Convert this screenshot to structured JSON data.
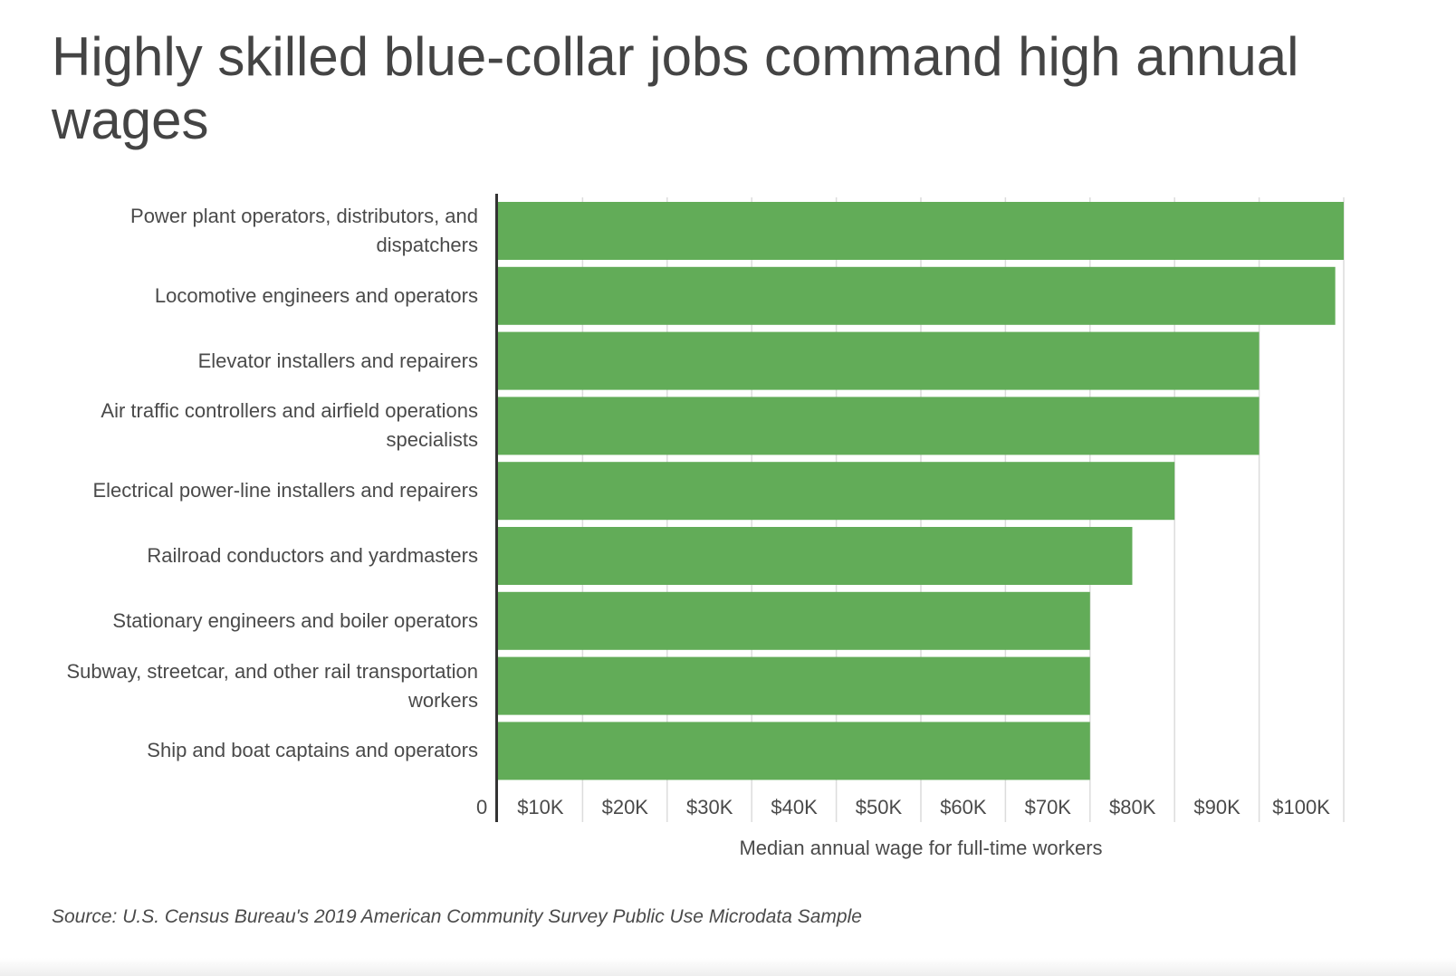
{
  "chart_data": {
    "type": "bar",
    "orientation": "horizontal",
    "title": "Highly skilled blue-collar jobs command high annual wages",
    "xlabel": "Median annual wage for full-time workers",
    "ylabel": "",
    "categories": [
      "Power plant operators, distributors, and dispatchers",
      "Locomotive engineers and operators",
      "Elevator installers and repairers",
      "Air traffic controllers and airfield operations specialists",
      "Electrical power-line installers and repairers",
      "Railroad conductors and yardmasters",
      "Stationary engineers and boiler operators",
      "Subway, streetcar, and other rail transportation workers",
      "Ship and boat captains and operators"
    ],
    "values": [
      100000,
      99000,
      90000,
      90000,
      80000,
      75000,
      70000,
      70000,
      70000
    ],
    "xlim": [
      0,
      100000
    ],
    "xticks": [
      0,
      10000,
      20000,
      30000,
      40000,
      50000,
      60000,
      70000,
      80000,
      90000,
      100000
    ],
    "xtick_labels": [
      "0",
      "$10K",
      "$20K",
      "$30K",
      "$40K",
      "$50K",
      "$60K",
      "$70K",
      "$80K",
      "$90K",
      "$100K"
    ],
    "grid": true,
    "bar_color": "#62ac58",
    "gridline_color": "#dcdcdc",
    "axis_color": "#333333",
    "source": "Source:  U.S. Census Bureau's 2019 American Community Survey Public Use Microdata Sample"
  }
}
